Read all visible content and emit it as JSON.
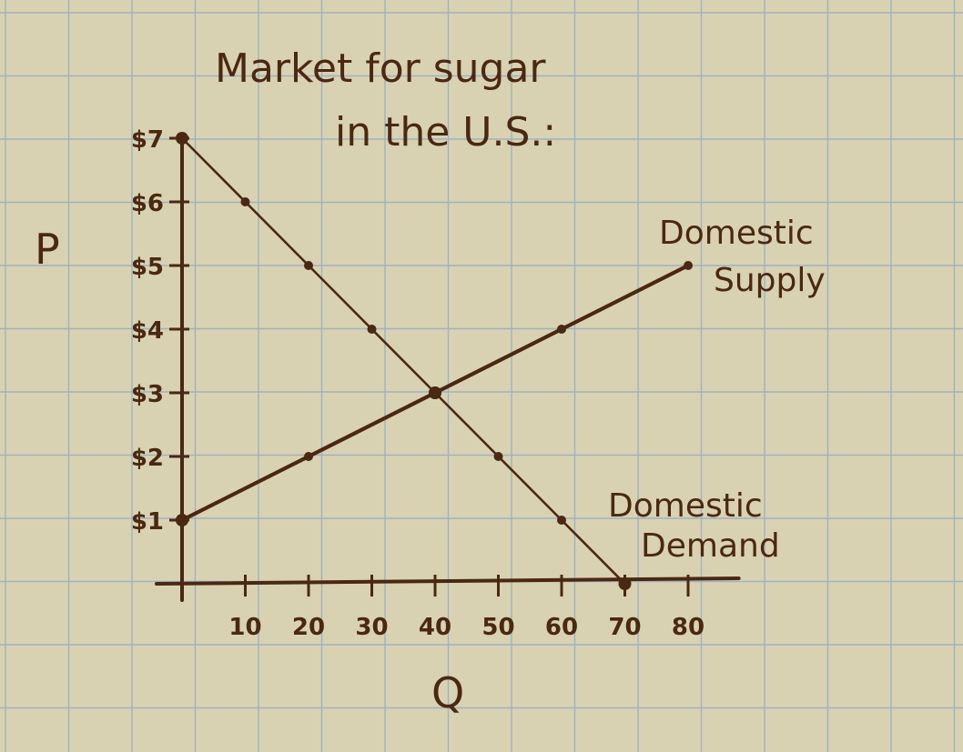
{
  "colors": {
    "paper": "#d9d2b2",
    "grid": "#9fb2be",
    "ink": "#4a2812"
  },
  "chart_data": {
    "type": "line",
    "title": [
      "Market for sugar",
      "in the U.S.:"
    ],
    "xlabel": "Q",
    "ylabel": "P",
    "xlim": [
      0,
      88
    ],
    "ylim": [
      0,
      7
    ],
    "x_ticks": [
      10,
      20,
      30,
      40,
      50,
      60,
      70,
      80
    ],
    "x_tick_labels": [
      "10",
      "20",
      "30",
      "40",
      "50",
      "60",
      "70",
      "80"
    ],
    "y_ticks": [
      1,
      2,
      3,
      4,
      5,
      6,
      7
    ],
    "y_tick_labels": [
      "$1",
      "$2",
      "$3",
      "$4",
      "$5",
      "$6",
      "$7"
    ],
    "series": [
      {
        "name": "Domestic Demand",
        "label_lines": [
          "Domestic",
          "Demand"
        ],
        "x": [
          0,
          10,
          20,
          30,
          40,
          50,
          60,
          70
        ],
        "y": [
          7,
          6,
          5,
          4,
          3,
          2,
          1,
          0
        ]
      },
      {
        "name": "Domestic Supply",
        "label_lines": [
          "Domestic",
          "Supply"
        ],
        "x": [
          0,
          20,
          40,
          60,
          80
        ],
        "y": [
          1,
          2,
          3,
          4,
          5
        ]
      }
    ],
    "grid": true
  }
}
